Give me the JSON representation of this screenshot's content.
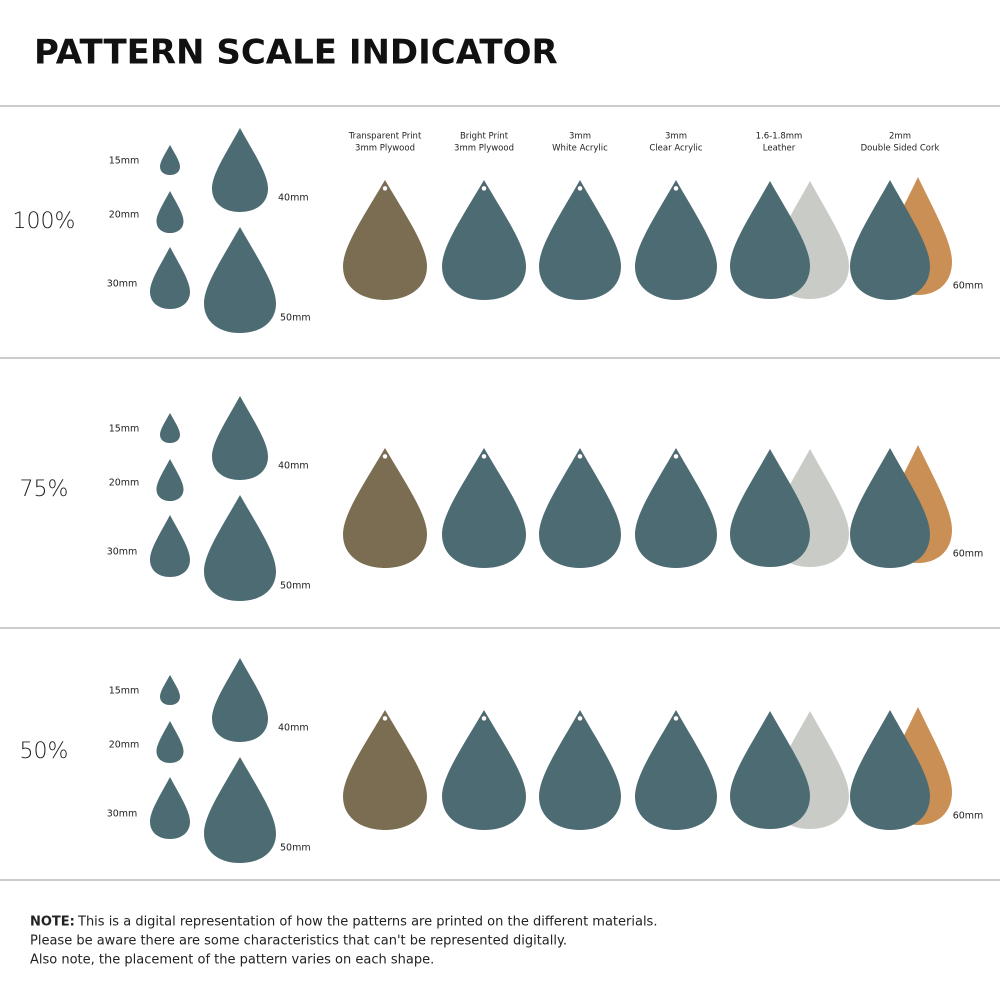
{
  "title": "PATTERN SCALE INDICATOR",
  "materials": [
    {
      "line1": "Transparent Print",
      "line2": "3mm Plywood"
    },
    {
      "line1": "Bright Print",
      "line2": "3mm Plywood"
    },
    {
      "line1": "3mm",
      "line2": "White Acrylic"
    },
    {
      "line1": "3mm",
      "line2": "Clear Acrylic"
    },
    {
      "line1": "1.6-1.8mm",
      "line2": "Leather"
    },
    {
      "line1": "2mm",
      "line2": "Double Sided Cork"
    }
  ],
  "rows": [
    {
      "scale": "100%",
      "sizes": [
        "15mm",
        "20mm",
        "30mm",
        "40mm",
        "50mm"
      ],
      "large_size": "60mm"
    },
    {
      "scale": "75%",
      "sizes": [
        "15mm",
        "20mm",
        "30mm",
        "40mm",
        "50mm"
      ],
      "large_size": "60mm"
    },
    {
      "scale": "50%",
      "sizes": [
        "15mm",
        "20mm",
        "30mm",
        "40mm",
        "50mm"
      ],
      "large_size": "60mm"
    }
  ],
  "note": {
    "label": "NOTE:",
    "lines": [
      "This is a digital representation of how the patterns are printed on the different materials.",
      "Please be aware there are some characteristics that can't be represented digitally.",
      "Also note, the placement of the pattern varies on each shape."
    ]
  }
}
